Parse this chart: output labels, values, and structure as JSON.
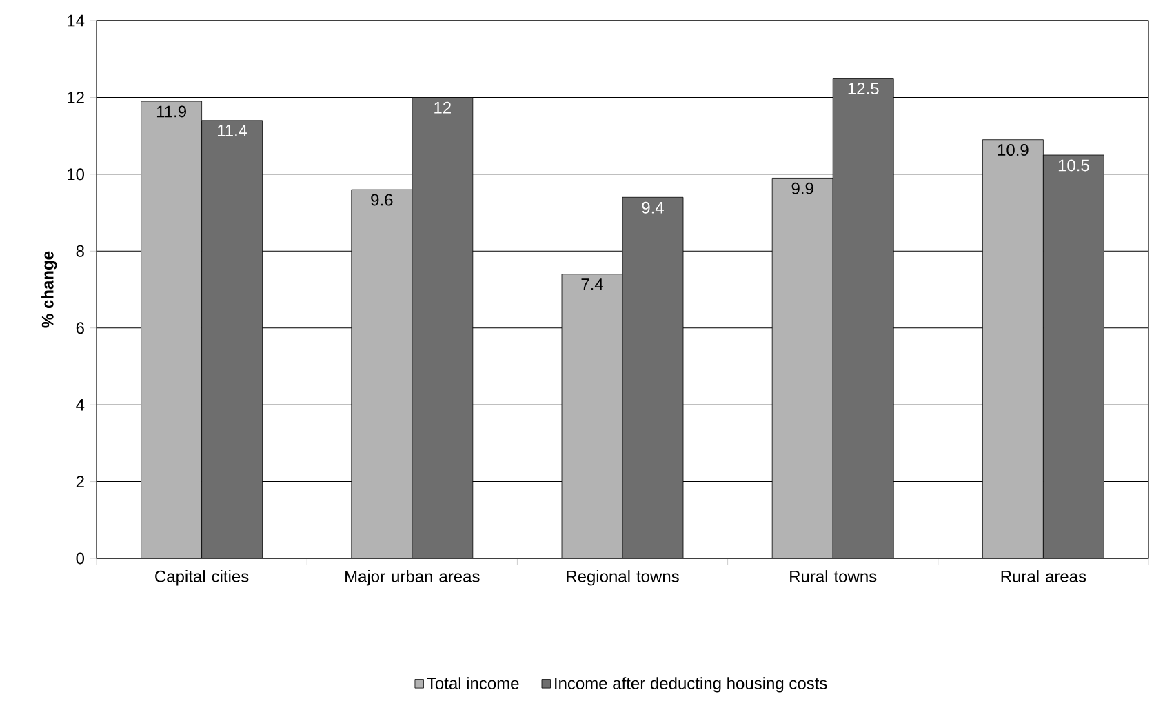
{
  "chart_data": {
    "type": "bar",
    "ylabel": "% change",
    "categories": [
      "Capital cities",
      "Major urban areas",
      "Regional towns",
      "Rural towns",
      "Rural areas"
    ],
    "series": [
      {
        "name": "Total income",
        "color": "#b3b3b3",
        "values": [
          11.9,
          9.6,
          7.4,
          9.9,
          10.9
        ],
        "value_labels": [
          "11.9",
          "9.6",
          "7.4",
          "9.9",
          "10.9"
        ]
      },
      {
        "name": "Income after deducting housing costs",
        "color": "#6e6e6e",
        "values": [
          11.4,
          12,
          9.4,
          12.5,
          10.5
        ],
        "value_labels": [
          "11.4",
          "12",
          "9.4",
          "12.5",
          "10.5"
        ]
      }
    ],
    "ylim": [
      0,
      14
    ],
    "yticks": [
      0,
      2,
      4,
      6,
      8,
      10,
      12,
      14
    ],
    "grid": "y",
    "legend": "bottom"
  }
}
